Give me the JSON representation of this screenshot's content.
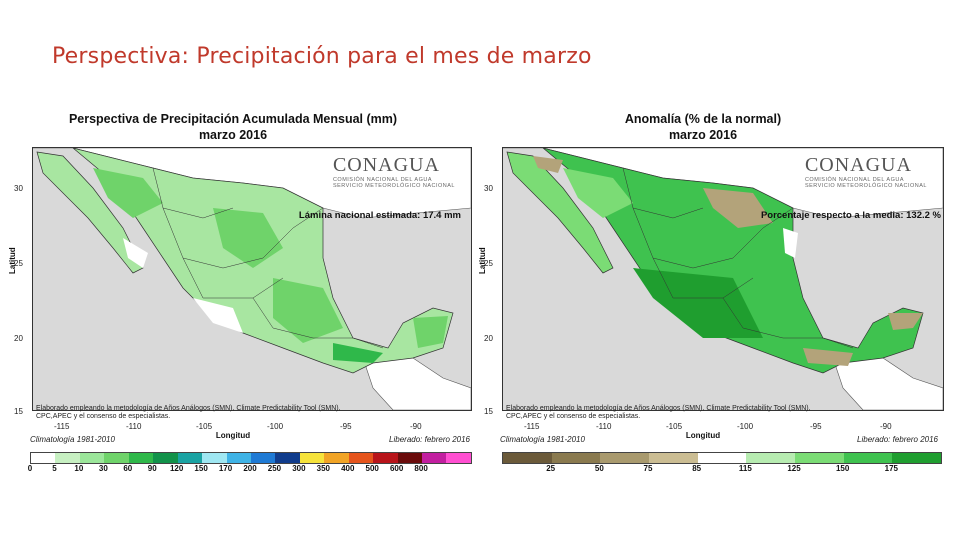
{
  "slide_title": "Perspectiva: Precipitación para el mes de marzo",
  "colors": {
    "land_green_light": "#a8e6a1",
    "land_green_mid": "#6fd36a",
    "land_green_dark": "#2fb84a",
    "land_brown": "#b3a37a",
    "land_white": "#ffffff",
    "ocean_gray": "#d9d9d9"
  },
  "left_panel": {
    "title_line1": "Perspectiva de Precipitación Acumulada Mensual (mm)",
    "title_line2": "marzo 2016",
    "logo_name": "CONAGUA",
    "logo_sub1": "COMISIÓN NACIONAL DEL AGUA",
    "logo_sub2": "SERVICIO METEOROLÓGICO NACIONAL",
    "annotation": "Lámina nacional estimada: 17.4 mm",
    "credit_line1": "Elaborado empleando la metodología de Años Análogos (SMN), Climate Predictability Tool (SMN),",
    "credit_line2": "CPC,APEC y el consenso de especialistas.",
    "climatology": "Climatología 1981-2010",
    "released": "Liberado: febrero 2016",
    "xlabel": "Longitud",
    "ylabel": "Latitud",
    "yticks": [
      "30",
      "25",
      "20",
      "15"
    ],
    "xticks": [
      "-115",
      "-110",
      "-105",
      "-100",
      "-95",
      "-90"
    ],
    "colorbar_labels": [
      "0",
      "5",
      "10",
      "30",
      "60",
      "90",
      "120",
      "150",
      "170",
      "200",
      "250",
      "300",
      "350",
      "400",
      "500",
      "600",
      "800"
    ],
    "colorbar_colors": [
      "#ffffff",
      "#c7f0c2",
      "#9be69a",
      "#6fd36a",
      "#2fb84a",
      "#12924a",
      "#1aa3a3",
      "#9fe7f2",
      "#3fb3e6",
      "#1f7ad4",
      "#103c8c",
      "#f6e33b",
      "#f1a426",
      "#e5541c",
      "#b8141a",
      "#6a0b0b",
      "#c21fa0",
      "#ff4fd1"
    ]
  },
  "right_panel": {
    "title_line1": "Anomalía (% de la normal)",
    "title_line2": "marzo 2016",
    "logo_name": "CONAGUA",
    "logo_sub1": "COMISIÓN NACIONAL DEL AGUA",
    "logo_sub2": "SERVICIO METEOROLÓGICO NACIONAL",
    "annotation": "Porcentaje respecto a la media: 132.2 %",
    "credit_line1": "Elaborado empleando la metodología de Años Análogos (SMN), Climate Predictability Tool (SMN),",
    "credit_line2": "CPC,APEC y el consenso de especialistas.",
    "climatology": "Climatología 1981-2010",
    "released": "Liberado: febrero 2016",
    "xlabel": "Longitud",
    "ylabel": "Latitud",
    "yticks": [
      "30",
      "25",
      "20",
      "15"
    ],
    "xticks": [
      "-115",
      "-110",
      "-105",
      "-100",
      "-95",
      "-90"
    ],
    "colorbar_labels": [
      "25",
      "50",
      "75",
      "85",
      "115",
      "125",
      "150",
      "175"
    ],
    "colorbar_colors": [
      "#6b5a3a",
      "#8a7a4f",
      "#a99a6e",
      "#cbbd93",
      "#ffffff",
      "#b7ecb1",
      "#7bdc75",
      "#3fc24f",
      "#1f9e2f"
    ]
  }
}
